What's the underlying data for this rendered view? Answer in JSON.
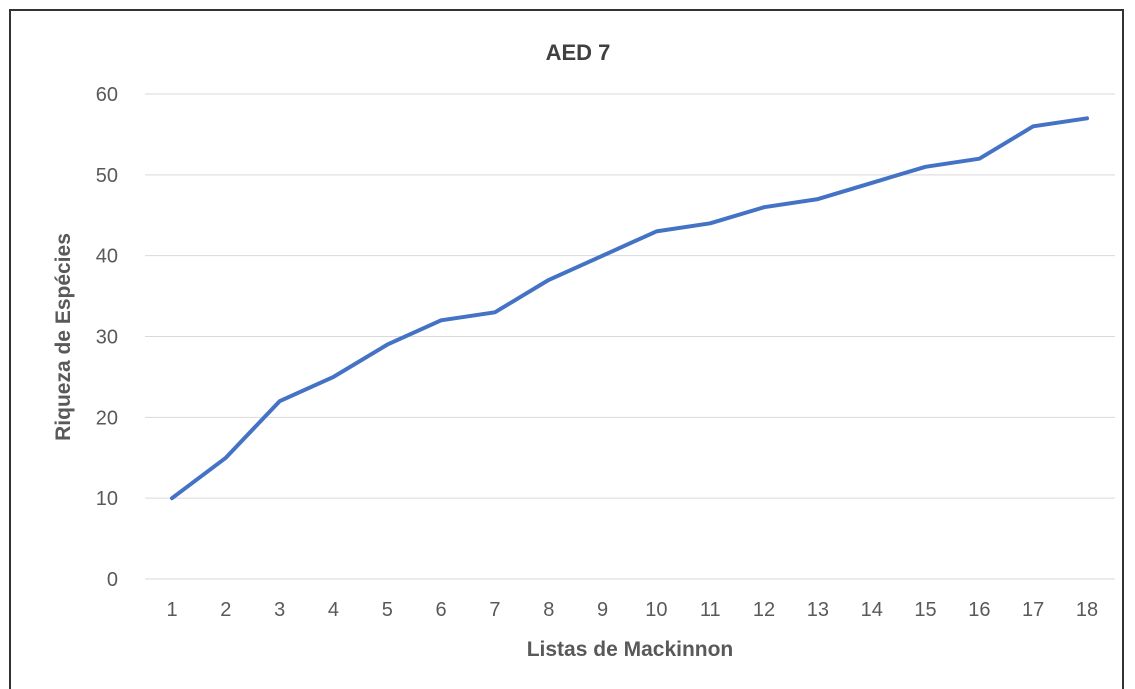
{
  "chart_data": {
    "type": "line",
    "title": "AED 7",
    "xlabel": "Listas de Mackinnon",
    "ylabel": "Riqueza de Espécies",
    "x": [
      "1",
      "2",
      "3",
      "4",
      "5",
      "6",
      "7",
      "8",
      "9",
      "10",
      "11",
      "12",
      "13",
      "14",
      "15",
      "16",
      "17",
      "18"
    ],
    "series": [
      {
        "values": [
          10,
          15,
          22,
          25,
          29,
          32,
          33,
          37,
          40,
          43,
          44,
          46,
          47,
          49,
          51,
          52,
          56,
          57
        ],
        "color": "#4472c4"
      }
    ],
    "ylim": [
      0,
      60
    ],
    "yticks": [
      "0",
      "10",
      "20",
      "30",
      "40",
      "50",
      "60"
    ],
    "grid": true,
    "legend": "none"
  }
}
